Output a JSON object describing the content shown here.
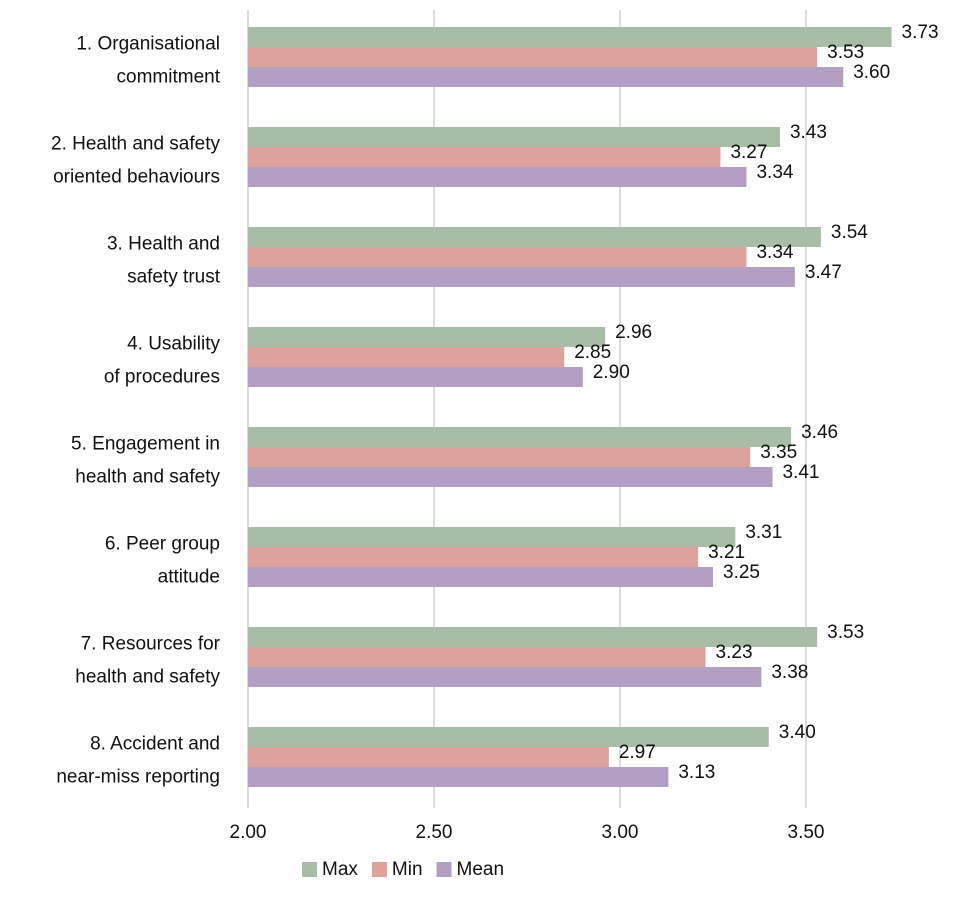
{
  "chart_data": {
    "type": "bar",
    "orientation": "horizontal",
    "categories": [
      "1. Organisational\ncommitment",
      "2. Health and safety\noriented behaviours",
      "3. Health and\nsafety trust",
      "4. Usability\nof procedures",
      "5. Engagement in\nhealth and safety",
      "6. Peer group\nattitude",
      "7. Resources for\nhealth and safety",
      "8. Accident and\nnear-miss reporting"
    ],
    "series": [
      {
        "name": "Max",
        "color": "#a8bda6",
        "values": [
          3.73,
          3.43,
          3.54,
          2.96,
          3.46,
          3.31,
          3.53,
          3.4
        ],
        "value_labels": [
          "3.73",
          "3.43",
          "3.54",
          "2.96",
          "3.46",
          "3.31",
          "3.53",
          "3.40"
        ]
      },
      {
        "name": "Min",
        "color": "#dca29b",
        "values": [
          3.53,
          3.27,
          3.34,
          2.85,
          3.35,
          3.21,
          3.23,
          2.97
        ],
        "value_labels": [
          "3.53",
          "3.27",
          "3.34",
          "2.85",
          "3.35",
          "3.21",
          "3.23",
          "2.97"
        ]
      },
      {
        "name": "Mean",
        "color": "#b49fc4",
        "values": [
          3.6,
          3.34,
          3.47,
          2.9,
          3.41,
          3.25,
          3.38,
          3.13
        ],
        "value_labels": [
          "3.60",
          "3.34",
          "3.47",
          "2.90",
          "3.41",
          "3.25",
          "3.38",
          "3.13"
        ]
      }
    ],
    "xlim": [
      2,
      3.9
    ],
    "xticks": [
      {
        "value": 2,
        "label": "2.00"
      },
      {
        "value": 2.5,
        "label": "2.50"
      },
      {
        "value": 3,
        "label": "3.00"
      },
      {
        "value": 3.5,
        "label": "3.50"
      }
    ],
    "grid": true,
    "legend": "bottom"
  }
}
